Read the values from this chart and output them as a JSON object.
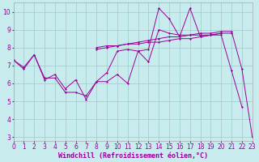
{
  "xlabel": "Windchill (Refroidissement éolien,°C)",
  "background_color": "#c8ecee",
  "line_color": "#990099",
  "grid_color": "#99cccc",
  "x_values": [
    0,
    1,
    2,
    3,
    4,
    5,
    6,
    7,
    8,
    9,
    10,
    11,
    12,
    13,
    14,
    15,
    16,
    17,
    18,
    19,
    20,
    21,
    22,
    23
  ],
  "series1": [
    7.3,
    6.8,
    7.6,
    6.2,
    6.5,
    5.7,
    6.2,
    5.1,
    6.1,
    6.1,
    6.5,
    6.0,
    7.8,
    7.2,
    9.0,
    8.8,
    8.7,
    8.7,
    8.7,
    8.7,
    8.7,
    6.7,
    4.7,
    null
  ],
  "series2": [
    7.3,
    6.9,
    7.6,
    6.3,
    6.3,
    5.5,
    5.5,
    5.3,
    6.1,
    6.6,
    7.8,
    7.9,
    7.8,
    7.9,
    10.2,
    9.6,
    8.6,
    10.2,
    8.6,
    8.7,
    8.8,
    null,
    null,
    null
  ],
  "series3": [
    7.3,
    null,
    null,
    null,
    null,
    null,
    null,
    null,
    8.0,
    8.1,
    8.1,
    8.2,
    8.2,
    8.3,
    8.3,
    8.4,
    8.5,
    8.5,
    8.6,
    8.7,
    8.8,
    8.8,
    null,
    null
  ],
  "series4": [
    7.3,
    null,
    null,
    null,
    null,
    null,
    null,
    null,
    7.9,
    8.0,
    8.1,
    8.2,
    8.3,
    8.4,
    8.5,
    8.6,
    8.6,
    8.7,
    8.8,
    8.8,
    8.9,
    8.9,
    6.8,
    3.0
  ],
  "xlim": [
    0,
    23
  ],
  "ylim": [
    2.8,
    10.5
  ],
  "yticks": [
    3,
    4,
    5,
    6,
    7,
    8,
    9,
    10
  ],
  "xticks": [
    0,
    1,
    2,
    3,
    4,
    5,
    6,
    7,
    8,
    9,
    10,
    11,
    12,
    13,
    14,
    15,
    16,
    17,
    18,
    19,
    20,
    21,
    22,
    23
  ],
  "xlabel_fontsize": 6.0,
  "tick_fontsize": 5.5
}
